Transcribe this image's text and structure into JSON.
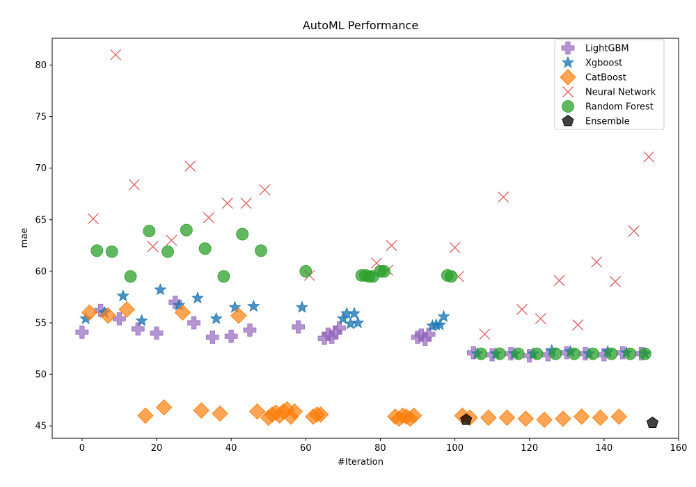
{
  "chart_data": {
    "type": "scatter",
    "title": "AutoML Performance",
    "xlabel": "#Iteration",
    "ylabel": "mae",
    "xlim": [
      -8,
      160
    ],
    "ylim": [
      43.8,
      82.6
    ],
    "xticks": [
      0,
      20,
      40,
      60,
      80,
      100,
      120,
      140,
      160
    ],
    "yticks": [
      45,
      50,
      55,
      60,
      65,
      70,
      75,
      80
    ],
    "grid": false,
    "legend_position": "top-right",
    "series": [
      {
        "name": "LightGBM",
        "color": "#9467bd",
        "marker": "plus-icon",
        "points": [
          [
            0,
            54.1
          ],
          [
            5,
            56.2
          ],
          [
            10,
            55.4
          ],
          [
            15,
            54.4
          ],
          [
            20,
            54.0
          ],
          [
            25,
            57.0
          ],
          [
            30,
            55.0
          ],
          [
            35,
            53.6
          ],
          [
            40,
            53.7
          ],
          [
            45,
            54.3
          ],
          [
            58,
            54.6
          ],
          [
            65,
            53.5
          ],
          [
            66,
            53.9
          ],
          [
            67,
            53.6
          ],
          [
            68,
            54.1
          ],
          [
            69,
            54.5
          ],
          [
            90,
            53.6
          ],
          [
            91,
            53.8
          ],
          [
            92,
            53.4
          ],
          [
            93,
            53.9
          ],
          [
            105,
            52.1
          ],
          [
            110,
            51.9
          ],
          [
            115,
            52.0
          ],
          [
            120,
            51.8
          ],
          [
            125,
            51.9
          ],
          [
            130,
            52.1
          ],
          [
            135,
            52.0
          ],
          [
            140,
            51.9
          ],
          [
            145,
            52.1
          ],
          [
            150,
            52.0
          ]
        ]
      },
      {
        "name": "Xgboost",
        "color": "#1f77b4",
        "marker": "star-icon",
        "points": [
          [
            1,
            55.4
          ],
          [
            6,
            56.0
          ],
          [
            11,
            57.6
          ],
          [
            16,
            55.2
          ],
          [
            21,
            58.2
          ],
          [
            26,
            56.7
          ],
          [
            31,
            57.4
          ],
          [
            36,
            55.4
          ],
          [
            41,
            56.5
          ],
          [
            46,
            56.6
          ],
          [
            59,
            56.5
          ],
          [
            70,
            55.4
          ],
          [
            71,
            55.9
          ],
          [
            72,
            54.9
          ],
          [
            73,
            55.9
          ],
          [
            74,
            55.0
          ],
          [
            94,
            54.7
          ],
          [
            95,
            54.8
          ],
          [
            96,
            54.8
          ],
          [
            97,
            55.6
          ],
          [
            106,
            52.0
          ],
          [
            111,
            52.0
          ],
          [
            116,
            52.0
          ],
          [
            121,
            52.0
          ],
          [
            126,
            52.3
          ],
          [
            131,
            52.2
          ],
          [
            136,
            52.0
          ],
          [
            141,
            52.2
          ],
          [
            146,
            52.1
          ],
          [
            151,
            52.0
          ]
        ]
      },
      {
        "name": "CatBoost",
        "color": "#ff7f0e",
        "marker": "diamond-icon",
        "points": [
          [
            2,
            56.0
          ],
          [
            7,
            55.7
          ],
          [
            12,
            56.3
          ],
          [
            17,
            46.0
          ],
          [
            22,
            46.8
          ],
          [
            27,
            56.0
          ],
          [
            32,
            46.5
          ],
          [
            37,
            46.2
          ],
          [
            42,
            55.7
          ],
          [
            47,
            46.4
          ],
          [
            50,
            45.8
          ],
          [
            51,
            46.1
          ],
          [
            52,
            46.3
          ],
          [
            53,
            46.0
          ],
          [
            54,
            46.4
          ],
          [
            55,
            46.6
          ],
          [
            56,
            45.9
          ],
          [
            57,
            46.4
          ],
          [
            62,
            45.9
          ],
          [
            63,
            46.1
          ],
          [
            64,
            46.1
          ],
          [
            84,
            45.9
          ],
          [
            85,
            45.7
          ],
          [
            86,
            46.0
          ],
          [
            87,
            45.9
          ],
          [
            88,
            45.7
          ],
          [
            89,
            46.0
          ],
          [
            102,
            46.0
          ],
          [
            104,
            45.8
          ],
          [
            109,
            45.8
          ],
          [
            114,
            45.8
          ],
          [
            119,
            45.7
          ],
          [
            124,
            45.6
          ],
          [
            129,
            45.7
          ],
          [
            134,
            45.9
          ],
          [
            139,
            45.8
          ],
          [
            144,
            45.9
          ]
        ]
      },
      {
        "name": "Neural Network",
        "color": "#d62728",
        "marker": "x-icon",
        "points": [
          [
            3,
            65.1
          ],
          [
            9,
            81.0
          ],
          [
            14,
            68.4
          ],
          [
            19,
            62.4
          ],
          [
            24,
            63.0
          ],
          [
            29,
            70.2
          ],
          [
            34,
            65.2
          ],
          [
            39,
            66.6
          ],
          [
            44,
            66.6
          ],
          [
            49,
            67.9
          ],
          [
            61,
            59.6
          ],
          [
            79,
            60.8
          ],
          [
            82,
            60.1
          ],
          [
            83,
            62.5
          ],
          [
            100,
            62.3
          ],
          [
            101,
            59.5
          ],
          [
            108,
            53.9
          ],
          [
            113,
            67.2
          ],
          [
            118,
            56.3
          ],
          [
            123,
            55.4
          ],
          [
            128,
            59.1
          ],
          [
            133,
            54.8
          ],
          [
            138,
            60.9
          ],
          [
            143,
            59.0
          ],
          [
            148,
            63.9
          ],
          [
            152,
            71.1
          ]
        ]
      },
      {
        "name": "Random Forest",
        "color": "#2ca02c",
        "marker": "circle-icon",
        "points": [
          [
            4,
            62.0
          ],
          [
            8,
            61.9
          ],
          [
            13,
            59.5
          ],
          [
            18,
            63.9
          ],
          [
            23,
            61.9
          ],
          [
            28,
            64.0
          ],
          [
            33,
            62.2
          ],
          [
            38,
            59.5
          ],
          [
            43,
            63.6
          ],
          [
            48,
            62.0
          ],
          [
            60,
            60.0
          ],
          [
            75,
            59.6
          ],
          [
            76,
            59.6
          ],
          [
            77,
            59.5
          ],
          [
            78,
            59.5
          ],
          [
            80,
            60.0
          ],
          [
            81,
            60.0
          ],
          [
            98,
            59.6
          ],
          [
            99,
            59.5
          ],
          [
            107,
            52.0
          ],
          [
            112,
            52.0
          ],
          [
            117,
            52.0
          ],
          [
            122,
            52.0
          ],
          [
            127,
            52.0
          ],
          [
            132,
            52.0
          ],
          [
            137,
            52.0
          ],
          [
            142,
            52.0
          ],
          [
            147,
            52.0
          ],
          [
            151,
            52.0
          ]
        ]
      },
      {
        "name": "Ensemble",
        "color": "#000000",
        "marker": "pentagon-icon",
        "points": [
          [
            103,
            45.6
          ],
          [
            153,
            45.3
          ]
        ]
      }
    ]
  }
}
